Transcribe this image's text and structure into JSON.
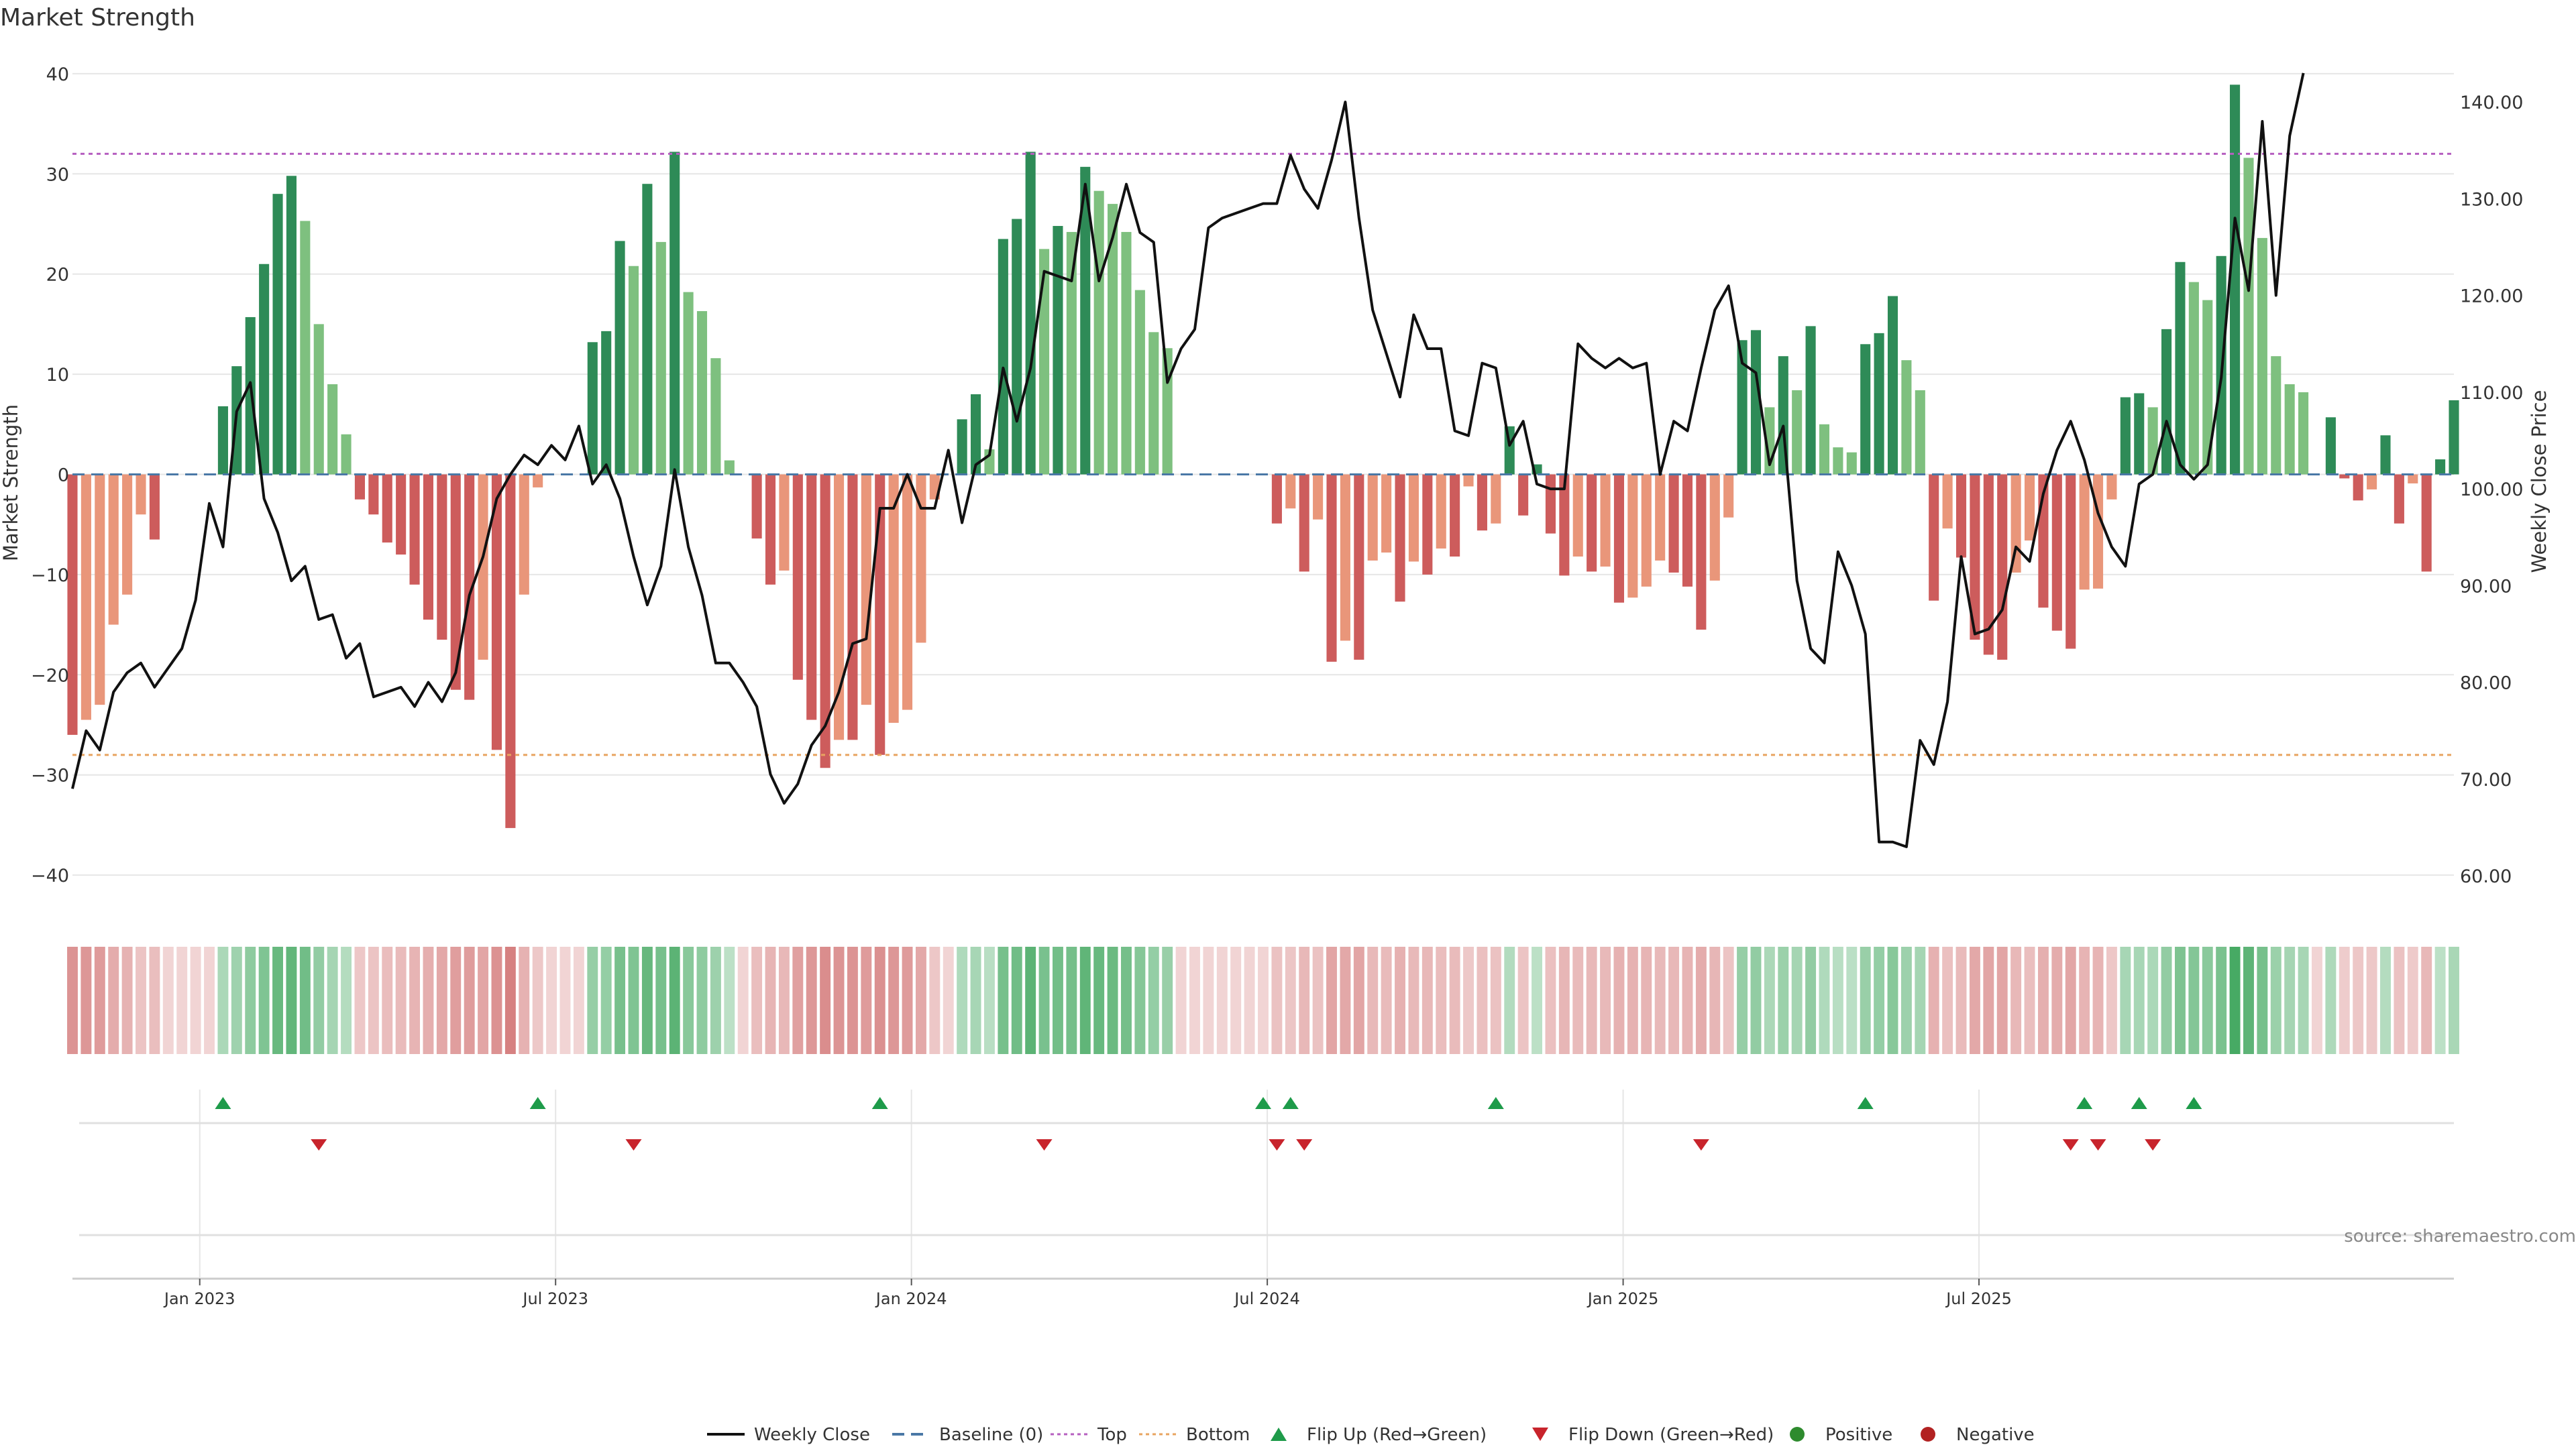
{
  "chart_data": {
    "type": "bar",
    "title": "Market Strength",
    "ylabel_left": "Market Strength",
    "ylabel_right": "Weekly Close Price",
    "y_left_range": [
      -42,
      42
    ],
    "y_left_ticks": [
      "40",
      "30",
      "20",
      "10",
      "0",
      "−10",
      "−20",
      "−30",
      "−40"
    ],
    "y_left_tick_values": [
      40,
      30,
      20,
      10,
      0,
      -10,
      -20,
      -30,
      -40
    ],
    "y_right_range": [
      58,
      145
    ],
    "y_right_ticks": [
      "140.00",
      "130.00",
      "120.00",
      "110.00",
      "100.00",
      "90.00",
      "80.00",
      "70.00",
      "60.00"
    ],
    "y_right_tick_values": [
      140,
      130,
      120,
      110,
      100,
      90,
      80,
      70,
      60
    ],
    "x_ticks": [
      "Jan 2023",
      "Jul 2023",
      "Jan 2024",
      "Jul 2024",
      "Jan 2025",
      "Jul 2025"
    ],
    "x_tick_week_index": [
      9.3,
      35.3,
      61.3,
      87.3,
      113.3,
      139.3
    ],
    "top_threshold": 32,
    "bottom_threshold": -28,
    "strength_values": [
      -26,
      -24.5,
      -23,
      -15,
      -12,
      -4,
      -6.5,
      0,
      0,
      0,
      0,
      6.8,
      10.8,
      15.7,
      21,
      28,
      29.8,
      25.3,
      15,
      9,
      4,
      -2.5,
      -4,
      -6.8,
      -8,
      -11,
      -14.5,
      -16.5,
      -21.5,
      -22.5,
      -18.5,
      -27.5,
      -35.3,
      -12,
      -1.3,
      0,
      0,
      0,
      13.2,
      14.3,
      23.3,
      20.8,
      29,
      23.2,
      32.2,
      18.2,
      16.3,
      11.6,
      1.4,
      0,
      -6.4,
      -11,
      -9.6,
      -20.5,
      -24.5,
      -29.3,
      -26.5,
      -26.5,
      -23,
      -28,
      -24.8,
      -23.5,
      -16.8,
      -2.5,
      0,
      5.5,
      8,
      2.5,
      23.5,
      25.5,
      32.2,
      22.5,
      24.8,
      24.2,
      30.7,
      28.3,
      27,
      24.2,
      18.4,
      14.2,
      12.6,
      0,
      0,
      0,
      0,
      0,
      0,
      0,
      -4.9,
      -3.4,
      -9.7,
      -4.5,
      -18.7,
      -16.6,
      -18.5,
      -8.6,
      -7.8,
      -12.7,
      -8.7,
      -10,
      -7.4,
      -8.2,
      -1.2,
      -5.6,
      -4.9,
      4.8,
      -4.1,
      1,
      -5.9,
      -10.1,
      -8.2,
      -9.7,
      -9.2,
      -12.8,
      -12.3,
      -11.2,
      -8.6,
      -9.8,
      -11.2,
      -15.5,
      -10.6,
      -4.3,
      13.4,
      14.4,
      6.7,
      11.8,
      8.4,
      14.8,
      5,
      2.7,
      2.2,
      13,
      14.1,
      17.8,
      11.4,
      8.4,
      -12.6,
      -5.4,
      -8.3,
      -16.5,
      -18,
      -18.5,
      -9.8,
      -6.6,
      -13.3,
      -15.6,
      -17.4,
      -11.5,
      -11.4,
      -2.5,
      7.7,
      8.1,
      6.7,
      14.5,
      21.2,
      19.2,
      17.4,
      21.8,
      38.9,
      31.6,
      23.6,
      11.8,
      9,
      8.2,
      0,
      5.7,
      -0.4,
      -2.6,
      -1.5,
      3.9,
      -4.9,
      -0.9,
      -9.7,
      1.5,
      7.4
    ],
    "price_values": [
      69,
      75,
      73,
      79,
      81,
      82,
      79.5,
      81.5,
      83.5,
      88.5,
      98.5,
      94,
      108,
      111,
      99,
      95.5,
      90.5,
      92,
      86.5,
      87,
      82.5,
      84,
      78.5,
      79,
      79.5,
      77.5,
      80,
      78,
      81,
      89,
      93,
      99,
      101.5,
      103.5,
      102.5,
      104.5,
      103,
      106.5,
      100.5,
      102.5,
      99,
      93,
      88,
      92,
      102,
      94,
      89,
      82,
      82,
      80,
      77.5,
      70.5,
      67.5,
      69.5,
      73.5,
      75.5,
      79,
      84,
      84.5,
      98,
      98,
      101.5,
      98,
      98,
      104,
      96.5,
      102.5,
      103.5,
      112.5,
      107,
      112.5,
      122.5,
      122,
      121.5,
      131.5,
      121.5,
      126,
      131.5,
      126.5,
      125.5,
      111,
      114.5,
      116.5,
      127,
      128,
      128.5,
      129,
      129.5,
      129.5,
      134.5,
      131,
      129,
      134,
      140,
      128,
      118.5,
      114,
      109.5,
      118,
      114.5,
      114.5,
      106,
      105.5,
      113,
      112.5,
      104.5,
      107,
      100.5,
      100,
      100,
      115,
      113.5,
      112.5,
      113.5,
      112.5,
      113,
      101.5,
      107,
      106,
      112.5,
      118.5,
      121,
      113,
      112,
      102.5,
      106.5,
      90.5,
      83.5,
      82,
      93.5,
      90,
      85,
      63.5,
      63.5,
      63,
      74,
      71.5,
      78,
      93,
      85,
      85.5,
      87.5,
      94,
      92.5,
      99.5,
      104,
      107,
      103,
      97.5,
      94,
      92,
      100.5,
      101.5,
      107,
      102.5,
      101,
      102.5,
      111.5,
      128,
      120.5,
      138,
      120,
      136.5,
      143
    ],
    "flip_up_weeks": [
      11,
      34,
      59,
      87,
      89,
      104,
      131,
      147,
      151,
      155
    ],
    "flip_down_weeks": [
      18,
      41,
      71,
      88,
      90,
      119,
      146,
      148,
      152
    ],
    "source_label": "source: sharemaestro.com",
    "legend": [
      "Weekly Close",
      "Baseline (0)",
      "Top",
      "Bottom",
      "Flip Up (Red→Green)",
      "Flip Down (Green→Red)",
      "Positive",
      "Negative"
    ]
  },
  "colors": {
    "pos_strong": "#2e8b57",
    "pos_light": "#7ec07f",
    "neg_strong": "#cd5c5c",
    "neg_light": "#e9967a",
    "price_line": "#111111",
    "baseline": "#4a78a6",
    "top_line": "#b65fc0",
    "bottom_line": "#e8a460",
    "flip_up": "#1e9b4a",
    "flip_down": "#c8242c",
    "positive_dot": "#2e8b2e",
    "negative_dot": "#b22222",
    "grid": "#e6e6e6",
    "axis_text": "#333333"
  }
}
